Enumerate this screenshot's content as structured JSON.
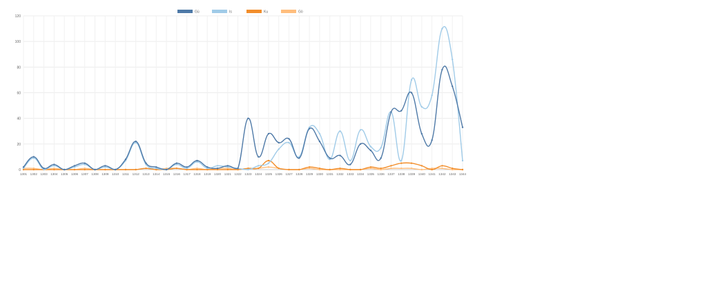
{
  "chart_data": {
    "type": "line",
    "title": "",
    "xlabel": "",
    "ylabel": "",
    "ylim": [
      0,
      120
    ],
    "yticks": [
      0,
      20,
      40,
      60,
      80,
      100,
      120
    ],
    "grid": true,
    "legend_position": "top-center",
    "categories": [
      "1301",
      "1302",
      "1303",
      "1304",
      "1305",
      "1306",
      "1307",
      "1308",
      "1309",
      "1310",
      "1311",
      "1312",
      "1313",
      "1314",
      "1315",
      "1316",
      "1317",
      "1318",
      "1319",
      "1320",
      "1321",
      "1322",
      "1323",
      "1324",
      "1325",
      "1326",
      "1327",
      "1328",
      "1329",
      "1330",
      "1331",
      "1332",
      "1333",
      "1334",
      "1335",
      "1336",
      "1337",
      "1338",
      "1339",
      "1340",
      "1341",
      "1342",
      "1343",
      "1344"
    ],
    "series": [
      {
        "name": "Gü",
        "color": "#4e79a7",
        "values": [
          2,
          10,
          1,
          4,
          0,
          3,
          5,
          0,
          3,
          0,
          8,
          22,
          5,
          2,
          0,
          5,
          2,
          7,
          2,
          1,
          3,
          1,
          40,
          10,
          28,
          21,
          24,
          9,
          32,
          22,
          9,
          11,
          4,
          20,
          15,
          9,
          45,
          46,
          60,
          28,
          23,
          78,
          65,
          33
        ]
      },
      {
        "name": "Is",
        "color": "#a0cbe8",
        "values": [
          1,
          9,
          0,
          3,
          0,
          2,
          4,
          0,
          2,
          0,
          7,
          21,
          4,
          1,
          0,
          4,
          1,
          6,
          1,
          3,
          2,
          1,
          0,
          3,
          5,
          16,
          21,
          10,
          33,
          28,
          8,
          30,
          7,
          31,
          18,
          17,
          45,
          7,
          70,
          49,
          58,
          110,
          86,
          7
        ]
      },
      {
        "name": "Ku",
        "color": "#f28e2b",
        "values": [
          0,
          0,
          0,
          0,
          0,
          0,
          0,
          0,
          0,
          0,
          0,
          0,
          1,
          0,
          0,
          1,
          0,
          0,
          0,
          0,
          0,
          0,
          1,
          1,
          7,
          1,
          0,
          0,
          2,
          1,
          0,
          1,
          0,
          0,
          2,
          1,
          3,
          5,
          5,
          3,
          0,
          3,
          1,
          0
        ]
      },
      {
        "name": "Gö",
        "color": "#ffbe7d",
        "values": [
          1,
          1,
          0,
          1,
          0,
          0,
          1,
          0,
          0,
          0,
          0,
          0,
          1,
          0,
          1,
          1,
          0,
          1,
          0,
          1,
          1,
          0,
          1,
          1,
          2,
          1,
          0,
          0,
          1,
          0,
          0,
          0,
          0,
          0,
          1,
          0,
          1,
          1,
          1,
          0,
          1,
          1,
          0,
          0
        ]
      }
    ]
  }
}
